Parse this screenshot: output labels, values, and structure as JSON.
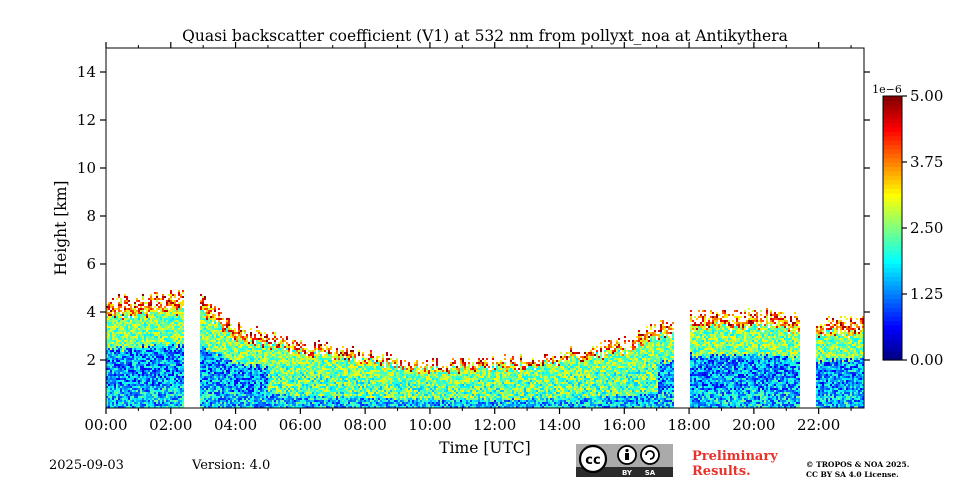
{
  "chart_data": {
    "type": "heatmap",
    "title": "Quasi backscatter coefficient (V1) at 532 nm from pollyxt_noa at Antikythera",
    "xlabel": "Time [UTC]",
    "ylabel": "Height [km]",
    "xlim_hours": [
      0,
      23.4
    ],
    "ylim_km": [
      0,
      15
    ],
    "x_ticks": [
      {
        "value": 0,
        "label": "00:00"
      },
      {
        "value": 2,
        "label": "02:00"
      },
      {
        "value": 4,
        "label": "04:00"
      },
      {
        "value": 6,
        "label": "06:00"
      },
      {
        "value": 8,
        "label": "08:00"
      },
      {
        "value": 10,
        "label": "10:00"
      },
      {
        "value": 12,
        "label": "12:00"
      },
      {
        "value": 14,
        "label": "14:00"
      },
      {
        "value": 16,
        "label": "16:00"
      },
      {
        "value": 18,
        "label": "18:00"
      },
      {
        "value": 20,
        "label": "20:00"
      },
      {
        "value": 22,
        "label": "22:00"
      }
    ],
    "y_ticks": [
      {
        "value": 2,
        "label": "2"
      },
      {
        "value": 4,
        "label": "4"
      },
      {
        "value": 6,
        "label": "6"
      },
      {
        "value": 8,
        "label": "8"
      },
      {
        "value": 10,
        "label": "10"
      },
      {
        "value": 12,
        "label": "12"
      },
      {
        "value": 14,
        "label": "14"
      }
    ],
    "colorbar": {
      "multiplier": "1e−6",
      "min": 0,
      "max": 5.0,
      "ticks": [
        {
          "value": 0,
          "label": "0.00"
        },
        {
          "value": 1.25,
          "label": "1.25"
        },
        {
          "value": 2.5,
          "label": "2.50"
        },
        {
          "value": 3.75,
          "label": "3.75"
        },
        {
          "value": 5.0,
          "label": "5.00"
        }
      ],
      "colormap": "jet"
    },
    "data_gaps_hours": [
      [
        2.35,
        2.9
      ],
      [
        17.5,
        18.0
      ],
      [
        21.4,
        21.9
      ]
    ],
    "aerosol_layer_top_km": [
      {
        "t": 0.0,
        "h": 4.5
      },
      {
        "t": 2.3,
        "h": 4.8
      },
      {
        "t": 3.0,
        "h": 4.6
      },
      {
        "t": 4.0,
        "h": 3.4
      },
      {
        "t": 6.0,
        "h": 2.8
      },
      {
        "t": 8.0,
        "h": 2.3
      },
      {
        "t": 10.0,
        "h": 1.9
      },
      {
        "t": 12.0,
        "h": 2.0
      },
      {
        "t": 14.0,
        "h": 2.3
      },
      {
        "t": 16.0,
        "h": 2.8
      },
      {
        "t": 17.4,
        "h": 3.8
      },
      {
        "t": 18.0,
        "h": 4.0
      },
      {
        "t": 20.0,
        "h": 4.0
      },
      {
        "t": 21.4,
        "h": 3.8
      },
      {
        "t": 22.0,
        "h": 3.7
      },
      {
        "t": 23.4,
        "h": 3.8
      }
    ]
  },
  "footer": {
    "date": "2025-09-03",
    "version": "Version: 4.0",
    "preliminary_line1": "Preliminary",
    "preliminary_line2": "Results.",
    "copyright_line1": "© TROPOS & NOA 2025.",
    "copyright_line2": "CC BY SA 4.0 License.",
    "license_badge_by": "BY",
    "license_badge_sa": "SA",
    "license_badge_cc": "cc"
  },
  "colors": {
    "preliminary": "#e8322c",
    "badge_bg": "#a9aaa9",
    "badge_strip": "#2b2b2b"
  }
}
